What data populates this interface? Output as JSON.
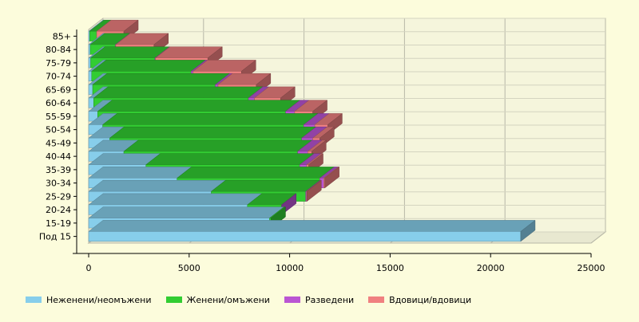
{
  "chart_data": {
    "type": "bar",
    "orientation": "horizontal",
    "stacked": true,
    "three_d": true,
    "title": "",
    "xlabel": "",
    "ylabel": "",
    "xlim": [
      0,
      25000
    ],
    "x_ticks": [
      0,
      5000,
      10000,
      15000,
      20000,
      25000
    ],
    "grid": true,
    "legend_position": "bottom",
    "categories": [
      "Под 15",
      "15-19",
      "20-24",
      "25-29",
      "30-34",
      "35-39",
      "40-44",
      "45-49",
      "50-54",
      "55-59",
      "60-64",
      "65-69",
      "70-74",
      "75-79",
      "80-84",
      "85+"
    ],
    "series": [
      {
        "name": "Неженени/неомъжени",
        "color": "#87ceeb",
        "values": [
          21500,
          9000,
          7900,
          6100,
          4400,
          2850,
          1750,
          1050,
          700,
          450,
          250,
          200,
          150,
          100,
          80,
          50
        ]
      },
      {
        "name": "Женени/омъжени",
        "color": "#32cd32",
        "values": [
          0,
          80,
          1700,
          4700,
          7100,
          7650,
          8650,
          9550,
          10000,
          9350,
          7700,
          6100,
          4950,
          3200,
          1250,
          350
        ]
      },
      {
        "name": "Разведени",
        "color": "#ba55d3",
        "values": [
          0,
          0,
          10,
          40,
          200,
          350,
          500,
          550,
          550,
          450,
          300,
          140,
          100,
          30,
          20,
          0
        ]
      },
      {
        "name": "Вдовици/вдовици",
        "color": "#f08080",
        "values": [
          0,
          0,
          0,
          20,
          50,
          100,
          200,
          350,
          650,
          900,
          1300,
          1900,
          2400,
          2600,
          1900,
          1350
        ]
      }
    ]
  }
}
